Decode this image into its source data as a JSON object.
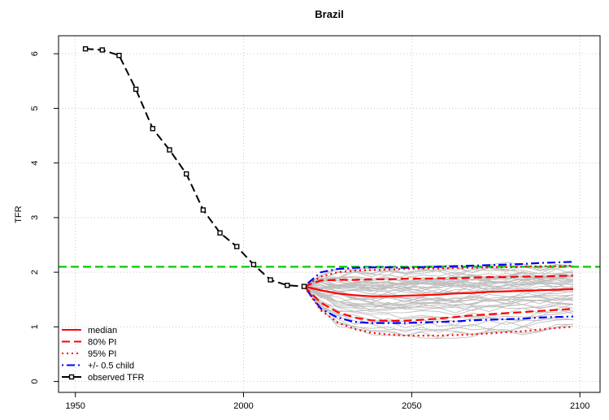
{
  "chart_data": {
    "type": "line",
    "title": "Brazil",
    "xlabel": "",
    "ylabel": "TFR",
    "xlim": [
      1945,
      2106
    ],
    "ylim": [
      -0.2,
      6.33
    ],
    "x_ticks": [
      1950,
      2000,
      2050,
      2100
    ],
    "y_ticks": [
      0,
      1,
      2,
      3,
      4,
      5,
      6
    ],
    "grid": true,
    "colors": {
      "median": "#ff0000",
      "pi80": "#ff0000",
      "pi95": "#ff0000",
      "half_child": "#0000ff",
      "observed": "#000000",
      "reference": "#00cc00",
      "trajectories": "#bebebe",
      "grid": "#c8c8c8"
    },
    "reference_line": {
      "y": 2.1
    },
    "observed": {
      "x": [
        1953,
        1958,
        1963,
        1968,
        1973,
        1978,
        1983,
        1988,
        1993,
        1998,
        2003,
        2008,
        2013,
        2018
      ],
      "y": [
        6.09,
        6.07,
        5.97,
        5.35,
        4.63,
        4.24,
        3.8,
        3.14,
        2.72,
        2.47,
        2.14,
        1.86,
        1.76,
        1.74
      ]
    },
    "projection_x": [
      2018,
      2023,
      2028,
      2033,
      2038,
      2043,
      2048,
      2053,
      2058,
      2063,
      2068,
      2073,
      2078,
      2083,
      2088,
      2093,
      2098
    ],
    "series": [
      {
        "name": "median",
        "style": "solid",
        "values": [
          1.74,
          1.67,
          1.61,
          1.58,
          1.56,
          1.56,
          1.57,
          1.58,
          1.59,
          1.61,
          1.62,
          1.64,
          1.65,
          1.66,
          1.67,
          1.68,
          1.69
        ]
      },
      {
        "name": "80% PI upper",
        "style": "dashed",
        "values": [
          1.74,
          1.85,
          1.86,
          1.86,
          1.87,
          1.87,
          1.88,
          1.88,
          1.89,
          1.89,
          1.9,
          1.91,
          1.91,
          1.92,
          1.92,
          1.93,
          1.94
        ]
      },
      {
        "name": "80% PI lower",
        "style": "dashed",
        "values": [
          1.74,
          1.44,
          1.27,
          1.17,
          1.12,
          1.11,
          1.11,
          1.13,
          1.15,
          1.18,
          1.21,
          1.23,
          1.25,
          1.27,
          1.29,
          1.31,
          1.33
        ]
      },
      {
        "name": "95% PI upper",
        "style": "dotted",
        "values": [
          1.74,
          1.92,
          2.0,
          2.03,
          2.04,
          2.05,
          2.06,
          2.07,
          2.07,
          2.08,
          2.08,
          2.09,
          2.09,
          2.1,
          2.11,
          2.11,
          2.12
        ]
      },
      {
        "name": "95% PI lower",
        "style": "dotted",
        "values": [
          1.74,
          1.3,
          1.08,
          0.96,
          0.89,
          0.86,
          0.84,
          0.84,
          0.84,
          0.85,
          0.86,
          0.88,
          0.9,
          0.92,
          0.95,
          0.98,
          1.0
        ]
      },
      {
        "name": "+0.5 child",
        "style": "dotdash",
        "values": [
          1.74,
          2.0,
          2.06,
          2.08,
          2.09,
          2.09,
          2.08,
          2.09,
          2.1,
          2.11,
          2.12,
          2.13,
          2.14,
          2.15,
          2.17,
          2.18,
          2.19
        ]
      },
      {
        "name": "-0.5 child",
        "style": "dotdash",
        "values": [
          1.74,
          1.33,
          1.17,
          1.09,
          1.07,
          1.07,
          1.07,
          1.08,
          1.09,
          1.1,
          1.12,
          1.13,
          1.14,
          1.15,
          1.17,
          1.18,
          1.19
        ]
      }
    ],
    "trajectory_count": 55,
    "legend": {
      "position": "bottom-left",
      "entries": [
        {
          "label": "median",
          "style": "solid",
          "color": "#ff0000"
        },
        {
          "label": "80% PI",
          "style": "dashed",
          "color": "#ff0000"
        },
        {
          "label": "95% PI",
          "style": "dotted",
          "color": "#ff0000"
        },
        {
          "label": "+/- 0.5 child",
          "style": "dotdash",
          "color": "#0000ff"
        },
        {
          "label": "observed TFR",
          "style": "solid-marker",
          "color": "#000000"
        }
      ]
    }
  }
}
